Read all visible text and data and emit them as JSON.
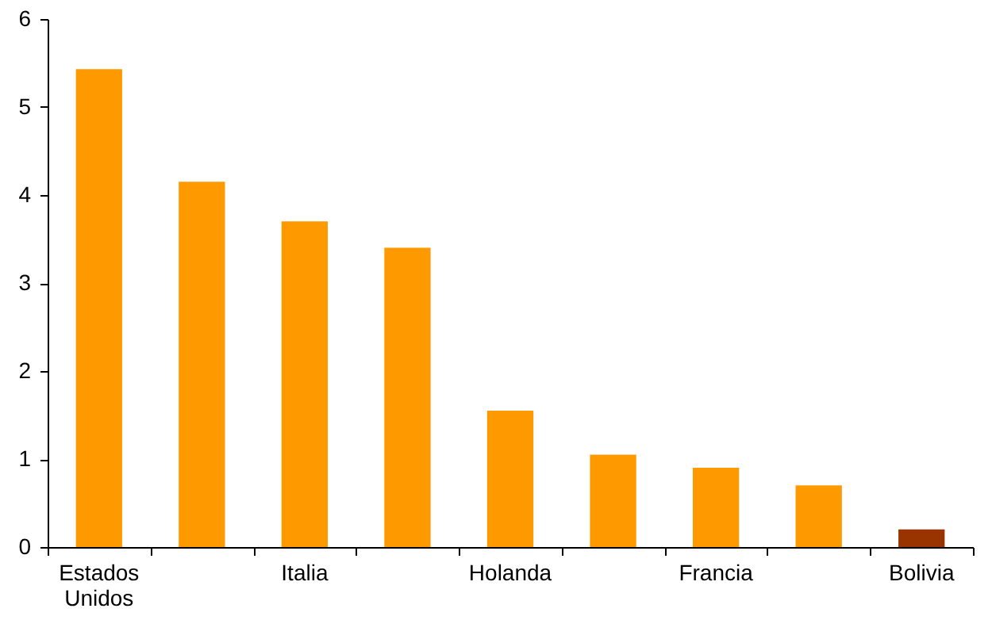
{
  "chart_data": {
    "type": "bar",
    "categories": [
      "Estados Unidos",
      null,
      "Italia",
      null,
      "Holanda",
      null,
      "Francia",
      null,
      "Bolivia"
    ],
    "values": [
      5.43,
      4.15,
      3.7,
      3.4,
      1.55,
      1.05,
      0.9,
      0.7,
      0.2
    ],
    "colors": [
      "#ff9900",
      "#ff9900",
      "#ff9900",
      "#ff9900",
      "#ff9900",
      "#ff9900",
      "#ff9900",
      "#ff9900",
      "#993300"
    ],
    "ylim": [
      0,
      6
    ],
    "yticks": [
      0,
      1,
      2,
      3,
      4,
      5,
      6
    ],
    "grid": false
  }
}
